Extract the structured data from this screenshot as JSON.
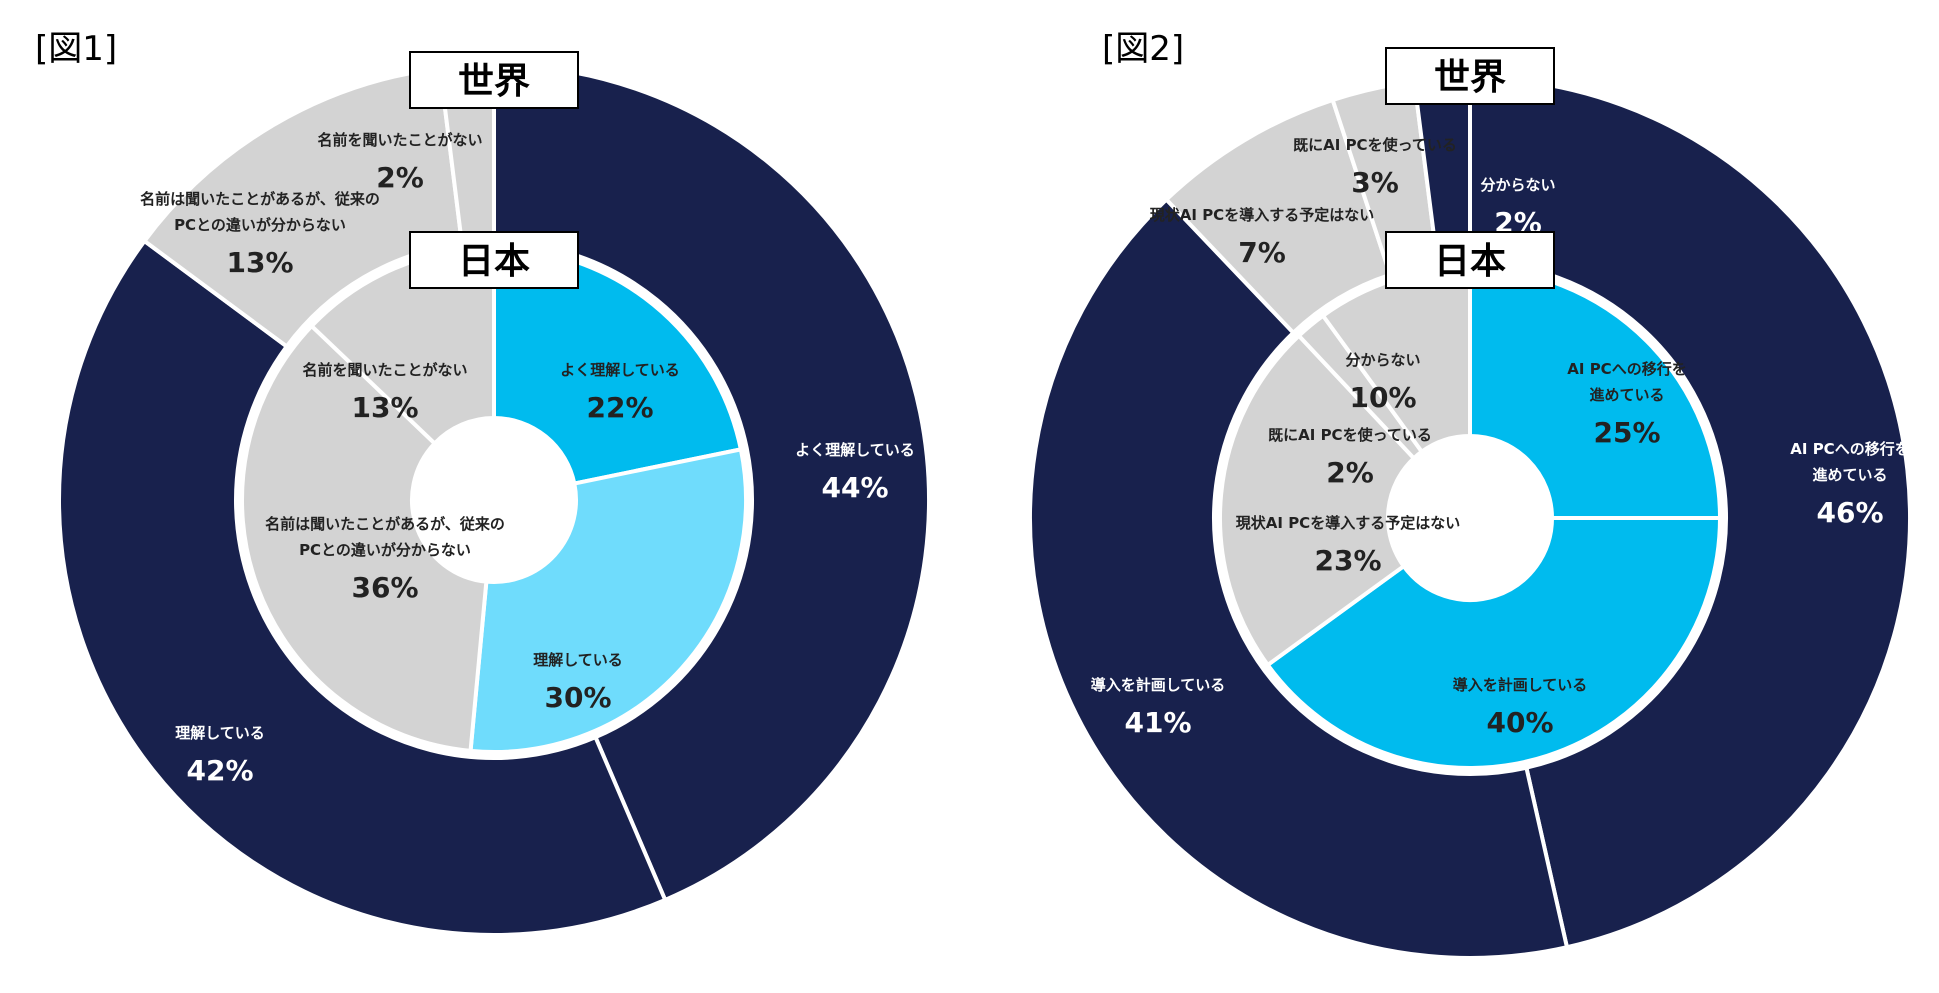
{
  "chart_data": [
    {
      "type": "donut",
      "figure_label": "[図1]",
      "outer_title": "世界",
      "inner_title": "日本",
      "outer_series": {
        "name": "世界",
        "slices": [
          {
            "label": "よく理解している",
            "value": 44,
            "pct_text": "44%",
            "color": "#18214d"
          },
          {
            "label": "理解している",
            "value": 42,
            "pct_text": "42%",
            "color": "#18214d"
          },
          {
            "label": "名前は聞いたことがあるが、従来のPCとの違いが分からない",
            "label_lines": [
              "名前は聞いたことがあるが、従来の",
              "PCとの違いが分からない"
            ],
            "value": 13,
            "pct_text": "13%",
            "color": "#d3d3d3"
          },
          {
            "label": "名前を聞いたことがない",
            "value": 2,
            "pct_text": "2%",
            "color": "#d3d3d3"
          }
        ]
      },
      "inner_series": {
        "name": "日本",
        "slices": [
          {
            "label": "よく理解している",
            "value": 22,
            "pct_text": "22%",
            "color": "#00bbee"
          },
          {
            "label": "理解している",
            "value": 30,
            "pct_text": "30%",
            "color": "#6fdcfc"
          },
          {
            "label": "名前は聞いたことがあるが、従来のPCとの違いが分からない",
            "label_lines": [
              "名前は聞いたことがあるが、従来の",
              "PCとの違いが分からない"
            ],
            "value": 36,
            "pct_text": "36%",
            "color": "#d3d3d3"
          },
          {
            "label": "名前を聞いたことがない",
            "value": 13,
            "pct_text": "13%",
            "color": "#d3d3d3"
          }
        ]
      }
    },
    {
      "type": "donut",
      "figure_label": "[図2]",
      "outer_title": "世界",
      "inner_title": "日本",
      "outer_series": {
        "name": "世界",
        "slices": [
          {
            "label": "AI PCへの移行を進めている",
            "label_lines": [
              "AI PCへの移行を",
              "進めている"
            ],
            "value": 46,
            "pct_text": "46%",
            "color": "#18214d"
          },
          {
            "label": "導入を計画している",
            "value": 41,
            "pct_text": "41%",
            "color": "#18214d"
          },
          {
            "label": "現状AI PCを導入する予定はない",
            "value": 7,
            "pct_text": "7%",
            "color": "#d3d3d3"
          },
          {
            "label": "既にAI PCを使っている",
            "value": 3,
            "pct_text": "3%",
            "color": "#d3d3d3"
          },
          {
            "label": "分からない",
            "value": 2,
            "pct_text": "2%",
            "color": "#18214d"
          }
        ]
      },
      "inner_series": {
        "name": "日本",
        "slices": [
          {
            "label": "AI PCへの移行を進めている",
            "label_lines": [
              "AI PCへの移行を",
              "進めている"
            ],
            "value": 25,
            "pct_text": "25%",
            "color": "#00bbee"
          },
          {
            "label": "導入を計画している",
            "value": 40,
            "pct_text": "40%",
            "color": "#00bbee"
          },
          {
            "label": "現状AI PCを導入する予定はない",
            "value": 23,
            "pct_text": "23%",
            "color": "#d3d3d3"
          },
          {
            "label": "既にAI PCを使っている",
            "value": 2,
            "pct_text": "2%",
            "color": "#d3d3d3"
          },
          {
            "label": "分からない",
            "value": 10,
            "pct_text": "10%",
            "color": "#d3d3d3"
          }
        ]
      }
    }
  ]
}
